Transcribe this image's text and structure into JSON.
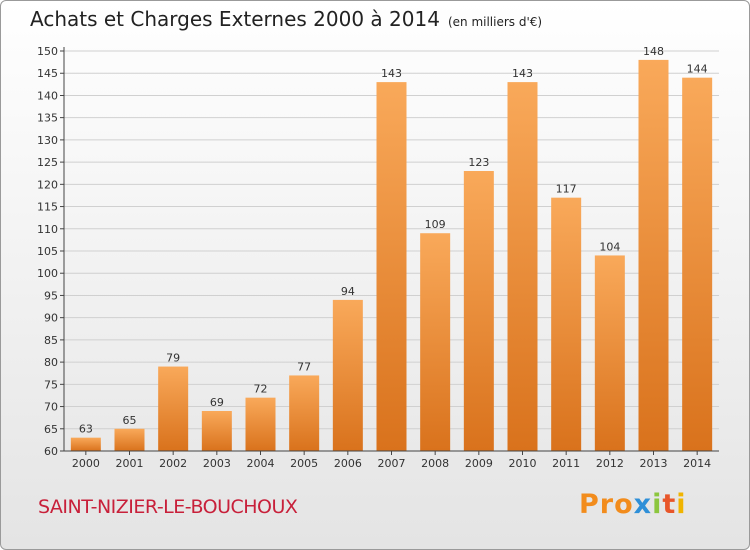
{
  "title": "Achats et Charges Externes 2000 à 2014",
  "unit_note": "(en milliers d'€)",
  "commune": "SAINT-NIZIER-LE-BOUCHOUX",
  "logo": {
    "parts": [
      "Pro",
      "x",
      "i",
      "t",
      "i"
    ]
  },
  "colors": {
    "bar_light": "#f9a95a",
    "bar_dark": "#d9721c",
    "axis": "#444444",
    "grid": "#d0d0d0"
  },
  "chart_data": {
    "type": "bar",
    "categories": [
      "2000",
      "2001",
      "2002",
      "2003",
      "2004",
      "2005",
      "2006",
      "2007",
      "2008",
      "2009",
      "2010",
      "2011",
      "2012",
      "2013",
      "2014"
    ],
    "values": [
      63,
      65,
      79,
      69,
      72,
      77,
      94,
      143,
      109,
      123,
      143,
      117,
      104,
      148,
      144
    ],
    "ylim": [
      60,
      150
    ],
    "yticks": [
      60,
      65,
      70,
      75,
      80,
      85,
      90,
      95,
      100,
      105,
      110,
      115,
      120,
      125,
      130,
      135,
      140,
      145,
      150
    ],
    "grid": true
  }
}
